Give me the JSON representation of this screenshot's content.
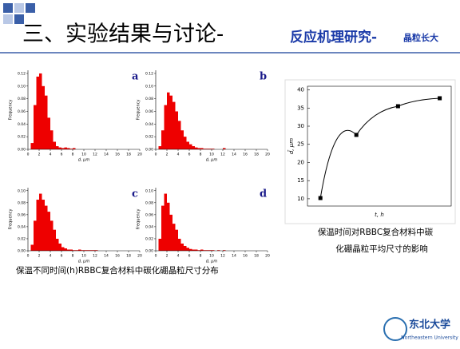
{
  "header": {
    "title_main": "三、实验结果与讨论-",
    "title_sub": "反应机理研究-",
    "title_small": "晶粒长大"
  },
  "captions": {
    "left": "保温不同时间(h)RBBC复合材料中碳化硼晶粒尺寸分布",
    "right_1": "保温时间对RBBC复合材料中碳",
    "right_2": "化硼晶粒平均尺寸的影响"
  },
  "logo": {
    "name": "东北大学",
    "english": "Northeastern University"
  },
  "chart_data": [
    {
      "type": "histogram",
      "panel_label": "a",
      "x_label": "d, μm",
      "y_label": "Frequency",
      "color": "#ee0000",
      "bins": [
        0,
        0.5,
        1,
        1.5,
        2,
        2.5,
        3,
        3.5,
        4,
        4.5,
        5,
        5.5,
        6,
        6.5,
        7,
        7.5,
        8,
        8.5,
        9,
        9.5,
        10,
        10.5,
        11,
        11.5,
        12,
        12.5,
        13
      ],
      "values": [
        0,
        0.01,
        0.07,
        0.115,
        0.12,
        0.1,
        0.085,
        0.05,
        0.03,
        0.012,
        0.005,
        0.003,
        0.002,
        0.003,
        0.002,
        0.001,
        0.002,
        0,
        0,
        0,
        0,
        0,
        0,
        0,
        0,
        0
      ],
      "xlim": [
        0,
        20
      ],
      "xticks": [
        0,
        2,
        4,
        6,
        8,
        10,
        12,
        14,
        16,
        18,
        20
      ],
      "ylim": [
        0,
        0.125
      ],
      "yticks": [
        {
          "value": 0,
          "label": "0.00"
        },
        0.02,
        0.04,
        0.06,
        0.08,
        {
          "value": 0.1,
          "label": "0.10"
        },
        0.12
      ]
    },
    {
      "type": "histogram",
      "panel_label": "b",
      "x_label": "d, μm",
      "y_label": "Frequency",
      "color": "#ee0000",
      "bins": [
        0,
        0.5,
        1,
        1.5,
        2,
        2.5,
        3,
        3.5,
        4,
        4.5,
        5,
        5.5,
        6,
        6.5,
        7,
        7.5,
        8,
        8.5,
        9,
        9.5,
        10,
        10.5,
        11,
        11.5,
        12,
        12.5,
        13
      ],
      "values": [
        0,
        0.005,
        0.03,
        0.07,
        0.09,
        0.085,
        0.075,
        0.06,
        0.045,
        0.03,
        0.02,
        0.012,
        0.008,
        0.005,
        0.003,
        0.002,
        0.002,
        0.001,
        0.001,
        0.001,
        0.001,
        0,
        0,
        0,
        0.002,
        0
      ],
      "xlim": [
        0,
        20
      ],
      "xticks": [
        0,
        2,
        4,
        6,
        8,
        10,
        12,
        14,
        16,
        18,
        20
      ],
      "ylim": [
        0,
        0.125
      ],
      "yticks": [
        {
          "value": 0,
          "label": "0.00"
        },
        0.02,
        0.04,
        0.06,
        0.08,
        {
          "value": 0.1,
          "label": "0.10"
        },
        0.12
      ]
    },
    {
      "type": "histogram",
      "panel_label": "c",
      "x_label": "d, μm",
      "y_label": "Frequency",
      "color": "#ee0000",
      "bins": [
        0,
        0.5,
        1,
        1.5,
        2,
        2.5,
        3,
        3.5,
        4,
        4.5,
        5,
        5.5,
        6,
        6.5,
        7,
        7.5,
        8,
        8.5,
        9,
        9.5,
        10,
        10.5,
        11,
        11.5,
        12,
        12.5,
        13
      ],
      "values": [
        0,
        0.01,
        0.05,
        0.085,
        0.095,
        0.085,
        0.075,
        0.065,
        0.05,
        0.035,
        0.02,
        0.012,
        0.006,
        0.004,
        0.002,
        0.002,
        0.001,
        0.001,
        0.002,
        0.001,
        0.001,
        0.001,
        0.001,
        0.001,
        0.001,
        0
      ],
      "xlim": [
        0,
        20
      ],
      "xticks": [
        0,
        2,
        4,
        6,
        8,
        10,
        12,
        14,
        16,
        18,
        20
      ],
      "ylim": [
        0,
        0.105
      ],
      "yticks": [
        {
          "value": 0,
          "label": "0.00"
        },
        0.02,
        0.04,
        0.06,
        0.08,
        {
          "value": 0.1,
          "label": "0.10"
        }
      ]
    },
    {
      "type": "histogram",
      "panel_label": "d",
      "x_label": "d, μm",
      "y_label": "Frequency",
      "color": "#ee0000",
      "bins": [
        0,
        0.5,
        1,
        1.5,
        2,
        2.5,
        3,
        3.5,
        4,
        4.5,
        5,
        5.5,
        6,
        6.5,
        7,
        7.5,
        8,
        8.5,
        9,
        9.5,
        10,
        10.5,
        11,
        11.5,
        12,
        12.5,
        13
      ],
      "values": [
        0,
        0.02,
        0.075,
        0.095,
        0.08,
        0.06,
        0.045,
        0.035,
        0.02,
        0.012,
        0.008,
        0.005,
        0.003,
        0.002,
        0.002,
        0.001,
        0.002,
        0.001,
        0.001,
        0.001,
        0.001,
        0,
        0.001,
        0,
        0.001,
        0
      ],
      "xlim": [
        0,
        20
      ],
      "xticks": [
        0,
        2,
        4,
        6,
        8,
        10,
        12,
        14,
        16,
        18,
        20
      ],
      "ylim": [
        0,
        0.105
      ],
      "yticks": [
        {
          "value": 0,
          "label": "0.00"
        },
        0.02,
        0.04,
        0.06,
        0.08,
        {
          "value": 0.1,
          "label": "0.10"
        }
      ]
    },
    {
      "type": "line",
      "x_label": "t, h",
      "y_label": "d̄, μm",
      "color": "#000000",
      "x": [
        0.9,
        3.4,
        6.3,
        9.2
      ],
      "values": [
        10.2,
        27.6,
        35.5,
        37.7
      ],
      "xlim": [
        0,
        10
      ],
      "ylim": [
        8,
        41
      ],
      "yticks": [
        10,
        15,
        20,
        25,
        30,
        35,
        40
      ]
    }
  ]
}
